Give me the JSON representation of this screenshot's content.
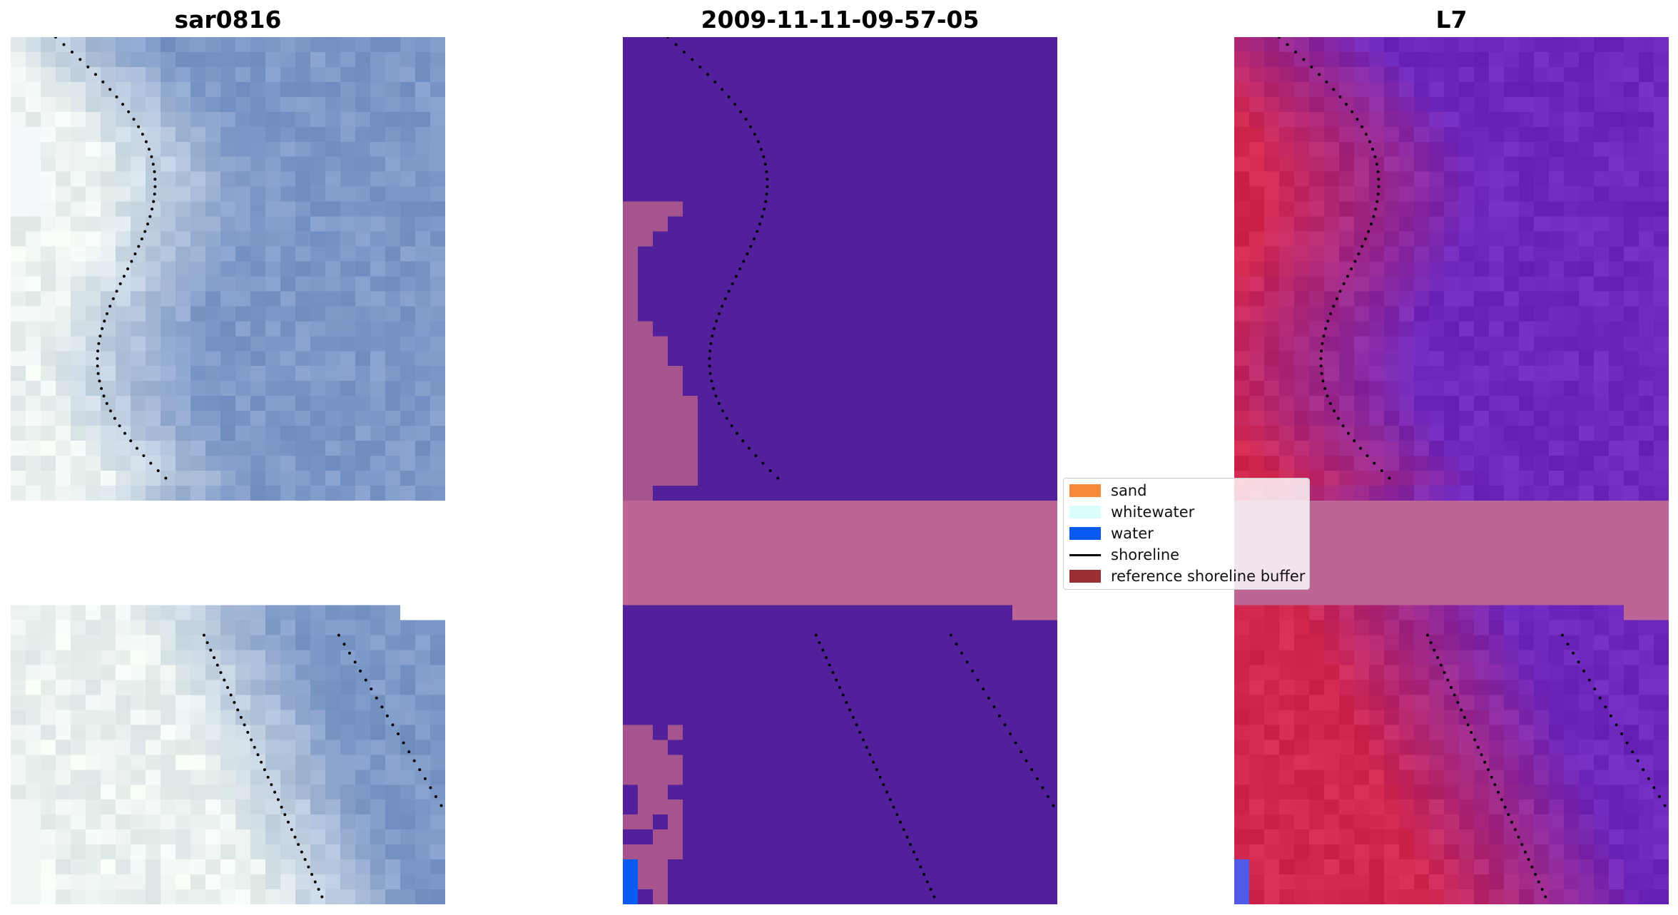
{
  "panels": [
    {
      "title": "sar0816",
      "style": "rgb"
    },
    {
      "title": "2009-11-11-09-57-05",
      "style": "classified"
    },
    {
      "title": "L7",
      "style": "mndwi"
    }
  ],
  "legend": {
    "items": [
      {
        "label": "sand",
        "kind": "patch",
        "color": "#f88b3a"
      },
      {
        "label": "whitewater",
        "kind": "patch",
        "color": "#d8fffb"
      },
      {
        "label": "water",
        "kind": "patch",
        "color": "#0a5bf3"
      },
      {
        "label": "shoreline",
        "kind": "line",
        "color": "#000000"
      },
      {
        "label": "reference shoreline buffer",
        "kind": "patch",
        "color": "#9b2f35"
      }
    ]
  },
  "colors": {
    "nodata_band": "#bd6594",
    "classified_background": "#52209a",
    "buffer_tint": "#a6548e",
    "shoreline_dots": "#000000"
  }
}
